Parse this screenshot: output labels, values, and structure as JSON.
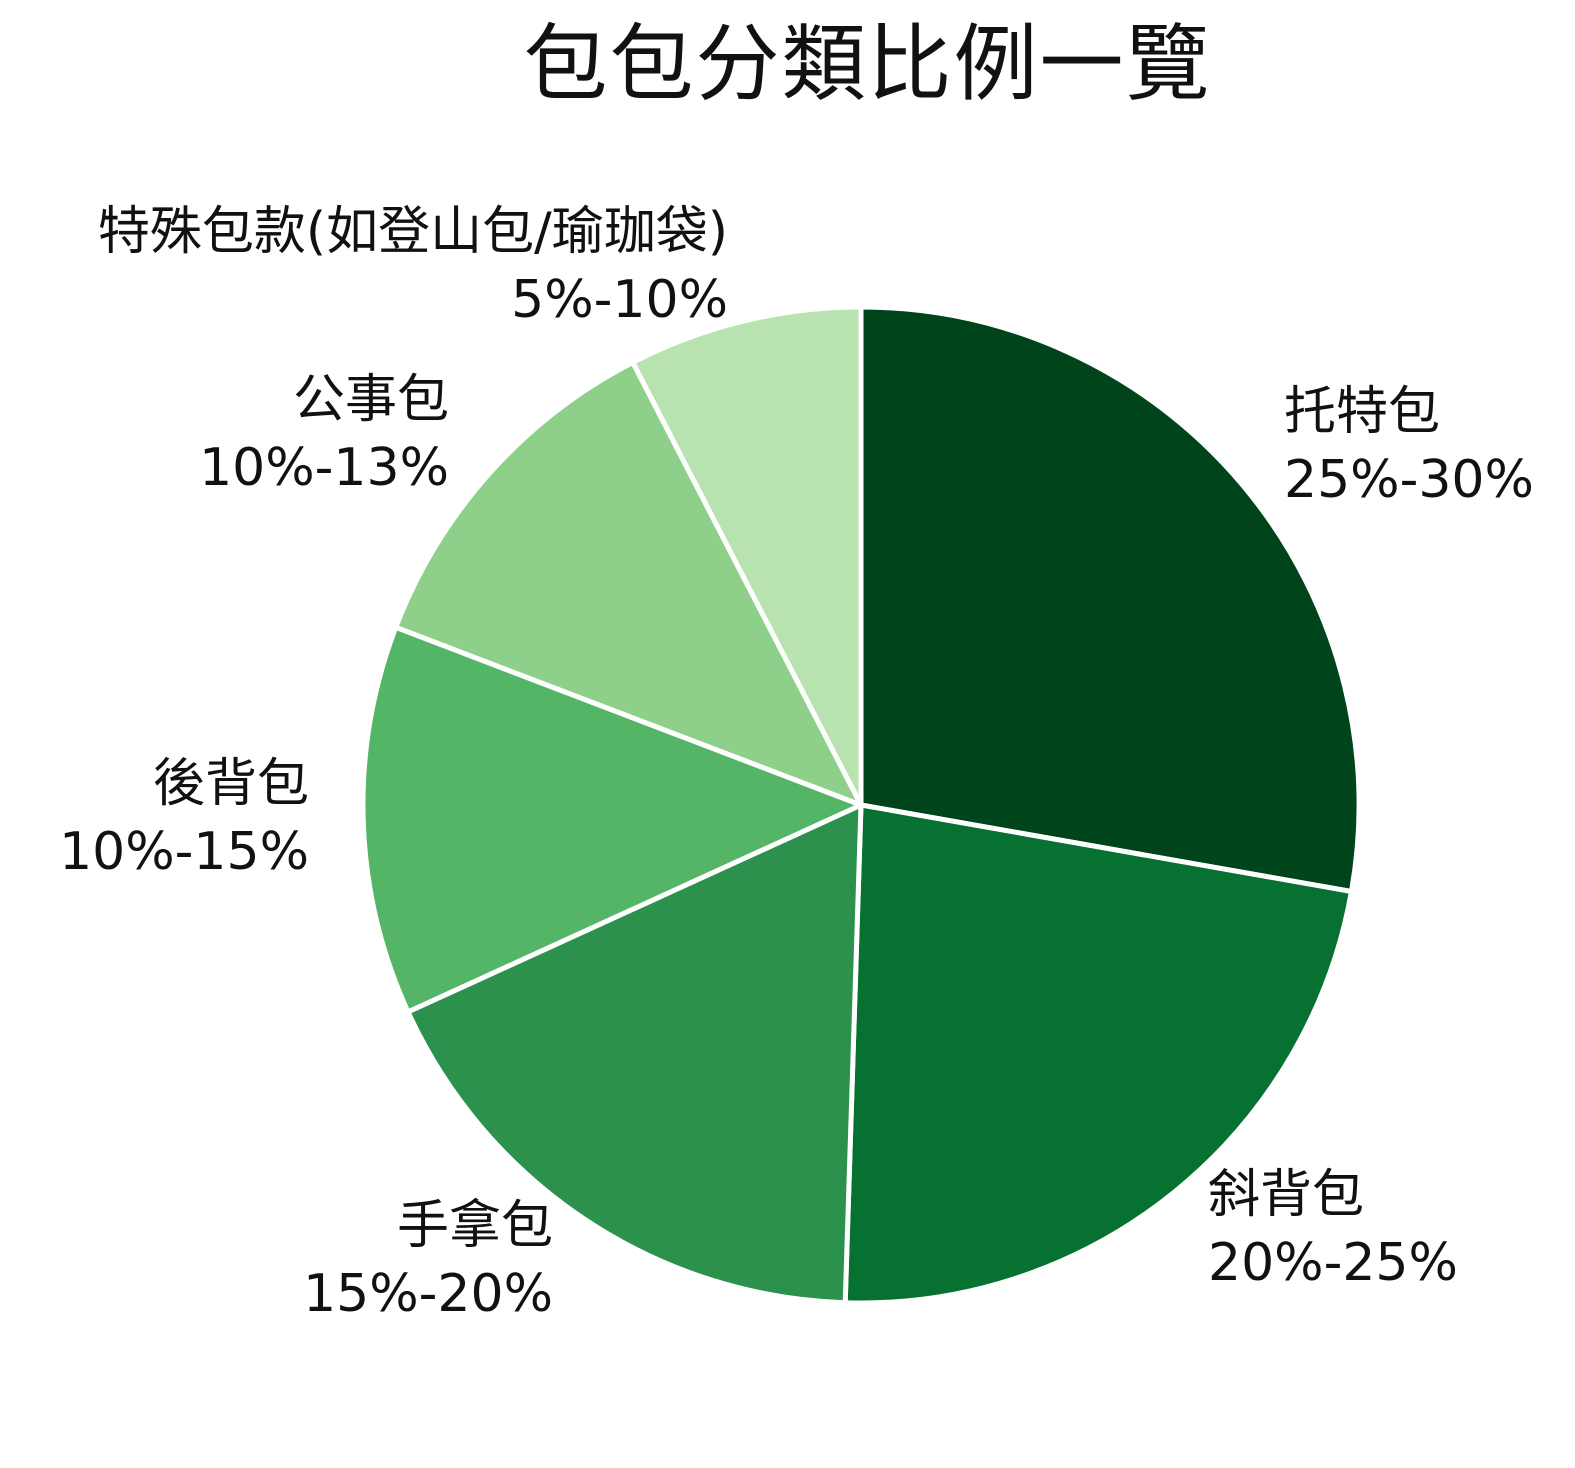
{
  "chart_data": {
    "type": "pie",
    "title": "包包分類比例一覽",
    "slices": [
      {
        "name": "托特包",
        "range": "25%-30%",
        "value": 27.5,
        "color": "#00441b"
      },
      {
        "name": "斜背包",
        "range": "20%-25%",
        "value": 22.5,
        "color": "#067130"
      },
      {
        "name": "手拿包",
        "range": "15%-20%",
        "value": 17.5,
        "color": "#2b914c"
      },
      {
        "name": "後背包",
        "range": "10%-15%",
        "value": 12.5,
        "color": "#55b567"
      },
      {
        "name": "公事包",
        "range": "10%-13%",
        "value": 11.5,
        "color": "#8ecf8a"
      },
      {
        "name": "特殊包款(如登山包/瑜珈袋)",
        "range": "5%-10%",
        "value": 7.5,
        "color": "#b8e3b1"
      }
    ],
    "legend": "none",
    "start_angle": "12 o'clock",
    "direction": "clockwise"
  }
}
